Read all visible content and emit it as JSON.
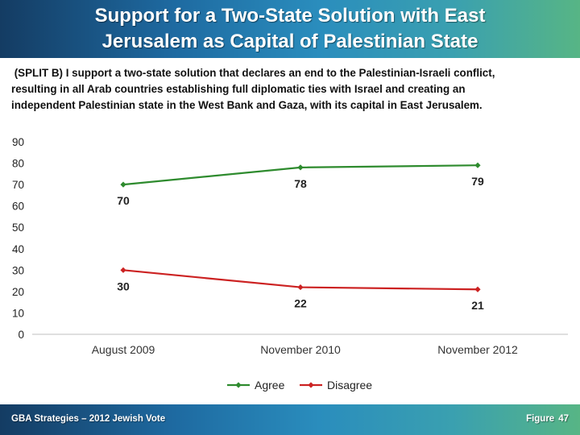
{
  "header": {
    "title_line1": "Support for a Two-State Solution with East",
    "title_line2": "Jerusalem as Capital of Palestinian State"
  },
  "subtitle": {
    "line1": " (SPLIT B) I support a two-state solution that declares an end to the Palestinian-Israeli conflict,",
    "line2": "resulting in all Arab countries establishing full diplomatic ties with Israel and creating an",
    "line3": "independent Palestinian state in the West Bank and Gaza, with its capital in East Jerusalem."
  },
  "footer": {
    "source": "GBA Strategies – 2012 Jewish Vote",
    "figure_label": "Figure",
    "figure_number": "47"
  },
  "chart_data": {
    "type": "line",
    "categories": [
      "August 2009",
      "November 2010",
      "November 2012"
    ],
    "series": [
      {
        "name": "Agree",
        "values": [
          70,
          78,
          79
        ],
        "color": "#2e8b2e"
      },
      {
        "name": "Disagree",
        "values": [
          30,
          22,
          21
        ],
        "color": "#cc2222"
      }
    ],
    "ylim": [
      0,
      90
    ],
    "yticks": [
      0,
      10,
      20,
      30,
      40,
      50,
      60,
      70,
      80,
      90
    ],
    "grid": false,
    "legend_position": "bottom",
    "data_labels": true
  }
}
